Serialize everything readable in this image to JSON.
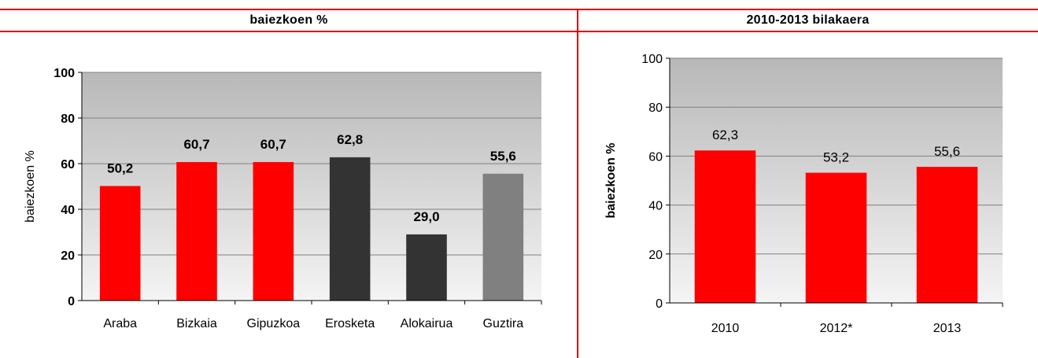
{
  "left_title": "baiezkoen %",
  "right_title": "2010-2013 bilakaera",
  "chart_data": [
    {
      "type": "bar",
      "title": "baiezkoen %",
      "ylabel": "baiezkoen %",
      "xlabel": "",
      "ylim": [
        0,
        100
      ],
      "yticks": [
        0,
        20,
        40,
        60,
        80,
        100
      ],
      "grid": true,
      "categories": [
        "Araba",
        "Bizkaia",
        "Gipuzkoa",
        "Erosketa",
        "Alokairua",
        "Guztira"
      ],
      "values": [
        50.2,
        60.7,
        60.7,
        62.8,
        29.0,
        55.6
      ],
      "labels": [
        "50,2",
        "60,7",
        "60,7",
        "62,8",
        "29,0",
        "55,6"
      ],
      "colors": [
        "#ff0000",
        "#ff0000",
        "#ff0000",
        "#333333",
        "#333333",
        "#808080"
      ]
    },
    {
      "type": "bar",
      "title": "2010-2013 bilakaera",
      "ylabel": "baiezkoen %",
      "xlabel": "",
      "ylim": [
        0,
        100
      ],
      "yticks": [
        0,
        20,
        40,
        60,
        80,
        100
      ],
      "grid": true,
      "categories": [
        "2010",
        "2012*",
        "2013"
      ],
      "values": [
        62.3,
        53.2,
        55.6
      ],
      "labels": [
        "62,3",
        "53,2",
        "55,6"
      ],
      "colors": [
        "#ff0000",
        "#ff0000",
        "#ff0000"
      ]
    }
  ]
}
